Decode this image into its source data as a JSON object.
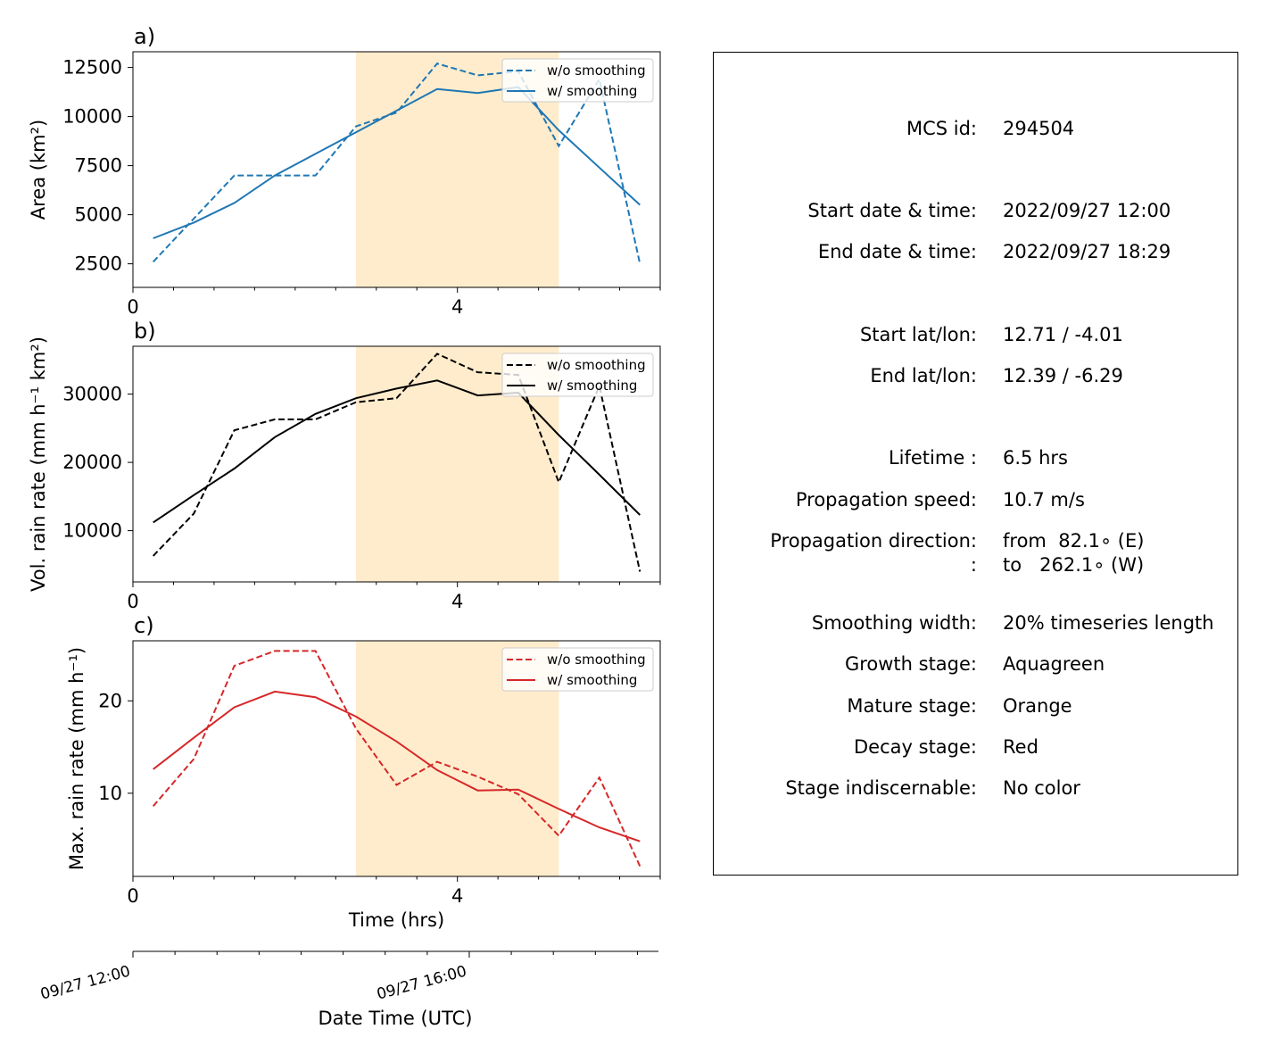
{
  "chart_data": [
    {
      "type": "line",
      "panel_label": "a)",
      "ylabel": "Area  (km²)",
      "xticks": [
        "0",
        "4"
      ],
      "yticks": [
        2500,
        5000,
        7500,
        10000,
        12500
      ],
      "xlim": [
        0,
        6.5
      ],
      "ylim": [
        1300,
        13300
      ],
      "legend_position": "upper right",
      "shaded_stage_x": [
        2.75,
        5.25
      ],
      "x": [
        0.25,
        0.75,
        1.25,
        1.75,
        2.25,
        2.75,
        3.25,
        3.75,
        4.25,
        4.75,
        5.25,
        5.75,
        6.25
      ],
      "series": [
        {
          "name": "w/o smoothing",
          "style": "dashed",
          "color": "#1f77b4",
          "values": [
            2600,
            4800,
            7000,
            7000,
            7000,
            9500,
            10200,
            12700,
            12100,
            12300,
            8500,
            11900,
            2500
          ]
        },
        {
          "name": "w/ smoothing",
          "style": "solid",
          "color": "#1f77b4",
          "values": [
            3800,
            4600,
            5600,
            7000,
            8100,
            9200,
            10300,
            11400,
            11200,
            11500,
            9300,
            7400,
            5500
          ]
        }
      ]
    },
    {
      "type": "line",
      "panel_label": "b)",
      "ylabel": "Vol. rain rate (mm h⁻¹ km²)",
      "xticks": [
        "0",
        "4"
      ],
      "yticks": [
        10000,
        20000,
        30000
      ],
      "xlim": [
        0,
        6.5
      ],
      "ylim": [
        2500,
        37000
      ],
      "legend_position": "upper right",
      "shaded_stage_x": [
        2.75,
        5.25
      ],
      "x": [
        0.25,
        0.75,
        1.25,
        1.75,
        2.25,
        2.75,
        3.25,
        3.75,
        4.25,
        4.75,
        5.25,
        5.75,
        6.25
      ],
      "series": [
        {
          "name": "w/o smoothing",
          "style": "dashed",
          "color": "#000000",
          "values": [
            6300,
            12500,
            24700,
            26300,
            26300,
            28800,
            29400,
            35900,
            33200,
            32800,
            17100,
            31200,
            4000
          ]
        },
        {
          "name": "w/ smoothing",
          "style": "solid",
          "color": "#000000",
          "values": [
            11200,
            15200,
            19100,
            23700,
            27100,
            29400,
            30800,
            32000,
            29800,
            30200,
            24000,
            18200,
            12300
          ]
        }
      ]
    },
    {
      "type": "line",
      "panel_label": "c)",
      "ylabel": "Max. rain rate  (mm h⁻¹)",
      "xlabel": "Time (hrs)",
      "xticks": [
        "0",
        "4"
      ],
      "yticks": [
        10,
        20
      ],
      "xlim": [
        0,
        6.5
      ],
      "ylim": [
        1,
        26.5
      ],
      "legend_position": "upper right",
      "shaded_stage_x": [
        2.75,
        5.25
      ],
      "x": [
        0.25,
        0.75,
        1.25,
        1.75,
        2.25,
        2.75,
        3.25,
        3.75,
        4.25,
        4.75,
        5.25,
        5.75,
        6.25
      ],
      "series": [
        {
          "name": "w/o smoothing",
          "style": "dashed",
          "color": "#d62728",
          "values": [
            8.6,
            13.7,
            23.8,
            25.4,
            25.4,
            17.0,
            10.9,
            13.4,
            11.8,
            9.9,
            5.4,
            11.7,
            2.1
          ]
        },
        {
          "name": "w/ smoothing",
          "style": "solid",
          "color": "#d62728",
          "values": [
            12.6,
            16.0,
            19.3,
            21.0,
            20.4,
            18.3,
            15.6,
            12.5,
            10.3,
            10.4,
            8.3,
            6.3,
            4.8
          ]
        }
      ]
    }
  ],
  "datetime_axis": {
    "xlabel": "Date Time (UTC)",
    "ticks": [
      "09/27 12:00",
      "09/27 16:00"
    ]
  },
  "colors": {
    "mature_stage_shading": "#ffeccc",
    "axis": "#000000"
  },
  "info": [
    {
      "label": "MCS id:",
      "value": "294504"
    },
    {
      "label": "Start date & time:",
      "value": "2022/09/27 12:00"
    },
    {
      "label": "End date & time:",
      "value": "2022/09/27 18:29"
    },
    {
      "label": "Start lat/lon:",
      "value": "12.71 / -4.01"
    },
    {
      "label": "End lat/lon:",
      "value": "12.39 / -6.29"
    },
    {
      "label": "Lifetime :",
      "value": "6.5 hrs"
    },
    {
      "label": "Propagation speed:",
      "value": "10.7 m/s"
    },
    {
      "label": "Propagation direction:",
      "value": "from  82.1∘ (E)"
    },
    {
      "label": ":",
      "value": "to   262.1∘ (W)"
    },
    {
      "label": "Smoothing width:",
      "value": "20% timeseries length"
    },
    {
      "label": "Growth stage:",
      "value": "Aquagreen"
    },
    {
      "label": "Mature stage:",
      "value": "Orange"
    },
    {
      "label": "Decay stage:",
      "value": "Red"
    },
    {
      "label": "Stage indiscernable:",
      "value": "No color"
    }
  ]
}
